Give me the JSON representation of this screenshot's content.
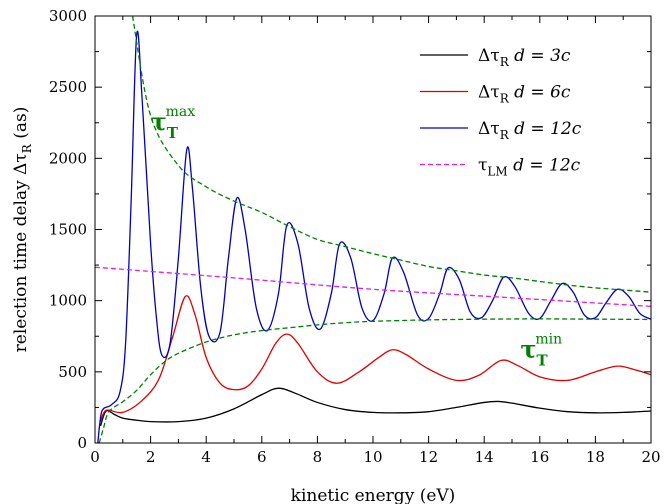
{
  "chart_data": {
    "type": "line",
    "xlabel": "kinetic energy (eV)",
    "ylabel": "relection time delay Δτ",
    "ylabel_sub": "R",
    "ylabel_unit": " (as)",
    "xlim": [
      0,
      20
    ],
    "ylim": [
      0,
      3000
    ],
    "x_ticks": [
      "0",
      "2",
      "4",
      "6",
      "8",
      "10",
      "12",
      "14",
      "16",
      "18",
      "20"
    ],
    "y_ticks": [
      "0",
      "500",
      "1000",
      "1500",
      "2000",
      "2500",
      "3000"
    ],
    "grid": false,
    "legend_position": "top-right",
    "series": [
      {
        "name": "ΔτR d = 3c",
        "symbol": "Δτ",
        "sub": "R",
        "label": "d = 3c",
        "color": "#000000",
        "dash": "solid",
        "points": [
          [
            0.2,
            120
          ],
          [
            0.4,
            225
          ],
          [
            0.7,
            200
          ],
          [
            1,
            175
          ],
          [
            1.5,
            160
          ],
          [
            2,
            150
          ],
          [
            3,
            150
          ],
          [
            4,
            175
          ],
          [
            5,
            240
          ],
          [
            6,
            340
          ],
          [
            6.6,
            385
          ],
          [
            7.2,
            350
          ],
          [
            8,
            285
          ],
          [
            9,
            235
          ],
          [
            10,
            215
          ],
          [
            11,
            212
          ],
          [
            12,
            220
          ],
          [
            13,
            250
          ],
          [
            14,
            285
          ],
          [
            14.5,
            292
          ],
          [
            15,
            280
          ],
          [
            16,
            245
          ],
          [
            17,
            220
          ],
          [
            18,
            212
          ],
          [
            19,
            215
          ],
          [
            20,
            225
          ]
        ]
      },
      {
        "name": "ΔτR d = 6c",
        "symbol": "Δτ",
        "sub": "R",
        "label": "d = 6c",
        "color": "#e00000",
        "dash": "solid",
        "points": [
          [
            0.2,
            150
          ],
          [
            0.4,
            230
          ],
          [
            1,
            215
          ],
          [
            1.7,
            300
          ],
          [
            2.3,
            450
          ],
          [
            2.8,
            750
          ],
          [
            3.25,
            1030
          ],
          [
            3.6,
            900
          ],
          [
            4,
            600
          ],
          [
            4.5,
            420
          ],
          [
            5,
            375
          ],
          [
            5.5,
            400
          ],
          [
            6,
            520
          ],
          [
            6.5,
            700
          ],
          [
            6.9,
            765
          ],
          [
            7.3,
            700
          ],
          [
            8,
            500
          ],
          [
            8.7,
            420
          ],
          [
            9.5,
            500
          ],
          [
            10.2,
            600
          ],
          [
            10.7,
            655
          ],
          [
            11.2,
            620
          ],
          [
            12,
            520
          ],
          [
            13,
            440
          ],
          [
            13.8,
            475
          ],
          [
            14.6,
            580
          ],
          [
            15.2,
            545
          ],
          [
            16,
            465
          ],
          [
            17,
            440
          ],
          [
            18,
            500
          ],
          [
            18.8,
            540
          ],
          [
            19.5,
            510
          ],
          [
            20,
            480
          ]
        ]
      },
      {
        "name": "ΔτR d = 12c",
        "symbol": "Δτ",
        "sub": "R",
        "label": "d = 12c",
        "color": "#0000c0",
        "dash": "solid",
        "points": [
          [
            0.1,
            0
          ],
          [
            0.2,
            180
          ],
          [
            0.3,
            240
          ],
          [
            0.6,
            270
          ],
          [
            0.9,
            360
          ],
          [
            1.1,
            700
          ],
          [
            1.3,
            1700
          ],
          [
            1.5,
            2870
          ],
          [
            1.7,
            2400
          ],
          [
            2,
            1400
          ],
          [
            2.2,
            900
          ],
          [
            2.4,
            620
          ],
          [
            2.7,
            700
          ],
          [
            3,
            1300
          ],
          [
            3.3,
            2060
          ],
          [
            3.5,
            1800
          ],
          [
            3.8,
            1100
          ],
          [
            4.1,
            750
          ],
          [
            4.5,
            780
          ],
          [
            4.8,
            1300
          ],
          [
            5.1,
            1720
          ],
          [
            5.4,
            1500
          ],
          [
            5.8,
            950
          ],
          [
            6.2,
            790
          ],
          [
            6.6,
            1050
          ],
          [
            6.9,
            1530
          ],
          [
            7.3,
            1400
          ],
          [
            7.7,
            950
          ],
          [
            8.1,
            800
          ],
          [
            8.5,
            1050
          ],
          [
            8.8,
            1400
          ],
          [
            9.2,
            1300
          ],
          [
            9.6,
            950
          ],
          [
            10,
            860
          ],
          [
            10.4,
            1050
          ],
          [
            10.7,
            1300
          ],
          [
            11.1,
            1200
          ],
          [
            11.6,
            900
          ],
          [
            12,
            875
          ],
          [
            12.4,
            1050
          ],
          [
            12.7,
            1230
          ],
          [
            13.1,
            1150
          ],
          [
            13.5,
            920
          ],
          [
            13.9,
            880
          ],
          [
            14.3,
            1000
          ],
          [
            14.7,
            1165
          ],
          [
            15.1,
            1100
          ],
          [
            15.6,
            910
          ],
          [
            16,
            875
          ],
          [
            16.4,
            1000
          ],
          [
            16.8,
            1120
          ],
          [
            17.2,
            1060
          ],
          [
            17.6,
            900
          ],
          [
            18,
            880
          ],
          [
            18.4,
            990
          ],
          [
            18.8,
            1080
          ],
          [
            19.2,
            1030
          ],
          [
            19.6,
            910
          ],
          [
            20,
            870
          ]
        ]
      },
      {
        "name": "τLM d = 12c",
        "symbol": "τ",
        "sub": "LM",
        "label": "d = 12c",
        "color": "#e020e0",
        "dash": "dashed",
        "points": [
          [
            0,
            1235
          ],
          [
            5,
            1160
          ],
          [
            10,
            1080
          ],
          [
            15,
            1020
          ],
          [
            20,
            960
          ]
        ]
      },
      {
        "name": "τT max",
        "color": "#008000",
        "dash": "dashed",
        "points": [
          [
            1.35,
            3000
          ],
          [
            2,
            2300
          ],
          [
            3,
            1950
          ],
          [
            4,
            1800
          ],
          [
            5,
            1700
          ],
          [
            6,
            1620
          ],
          [
            7,
            1520
          ],
          [
            8,
            1430
          ],
          [
            9,
            1380
          ],
          [
            10,
            1330
          ],
          [
            11,
            1285
          ],
          [
            12,
            1240
          ],
          [
            13,
            1210
          ],
          [
            14,
            1180
          ],
          [
            15,
            1160
          ],
          [
            16,
            1135
          ],
          [
            17,
            1110
          ],
          [
            18,
            1090
          ],
          [
            19,
            1075
          ],
          [
            20,
            1060
          ]
        ]
      },
      {
        "name": "τT min",
        "color": "#008000",
        "dash": "dashed",
        "points": [
          [
            0.15,
            0
          ],
          [
            0.3,
            100
          ],
          [
            0.5,
            220
          ],
          [
            1,
            290
          ],
          [
            1.5,
            370
          ],
          [
            2,
            480
          ],
          [
            2.5,
            570
          ],
          [
            3,
            630
          ],
          [
            4,
            710
          ],
          [
            5,
            760
          ],
          [
            6,
            790
          ],
          [
            7,
            810
          ],
          [
            8,
            830
          ],
          [
            9,
            845
          ],
          [
            10,
            855
          ],
          [
            12,
            865
          ],
          [
            14,
            870
          ],
          [
            16,
            872
          ],
          [
            18,
            870
          ],
          [
            20,
            868
          ]
        ]
      }
    ],
    "annotations": [
      {
        "base": "τ",
        "sub": "T",
        "sup": "max",
        "x": 2.0,
        "y": 2200
      },
      {
        "base": "τ",
        "sub": "T",
        "sup": "min",
        "x": 15.3,
        "y": 600
      }
    ]
  }
}
